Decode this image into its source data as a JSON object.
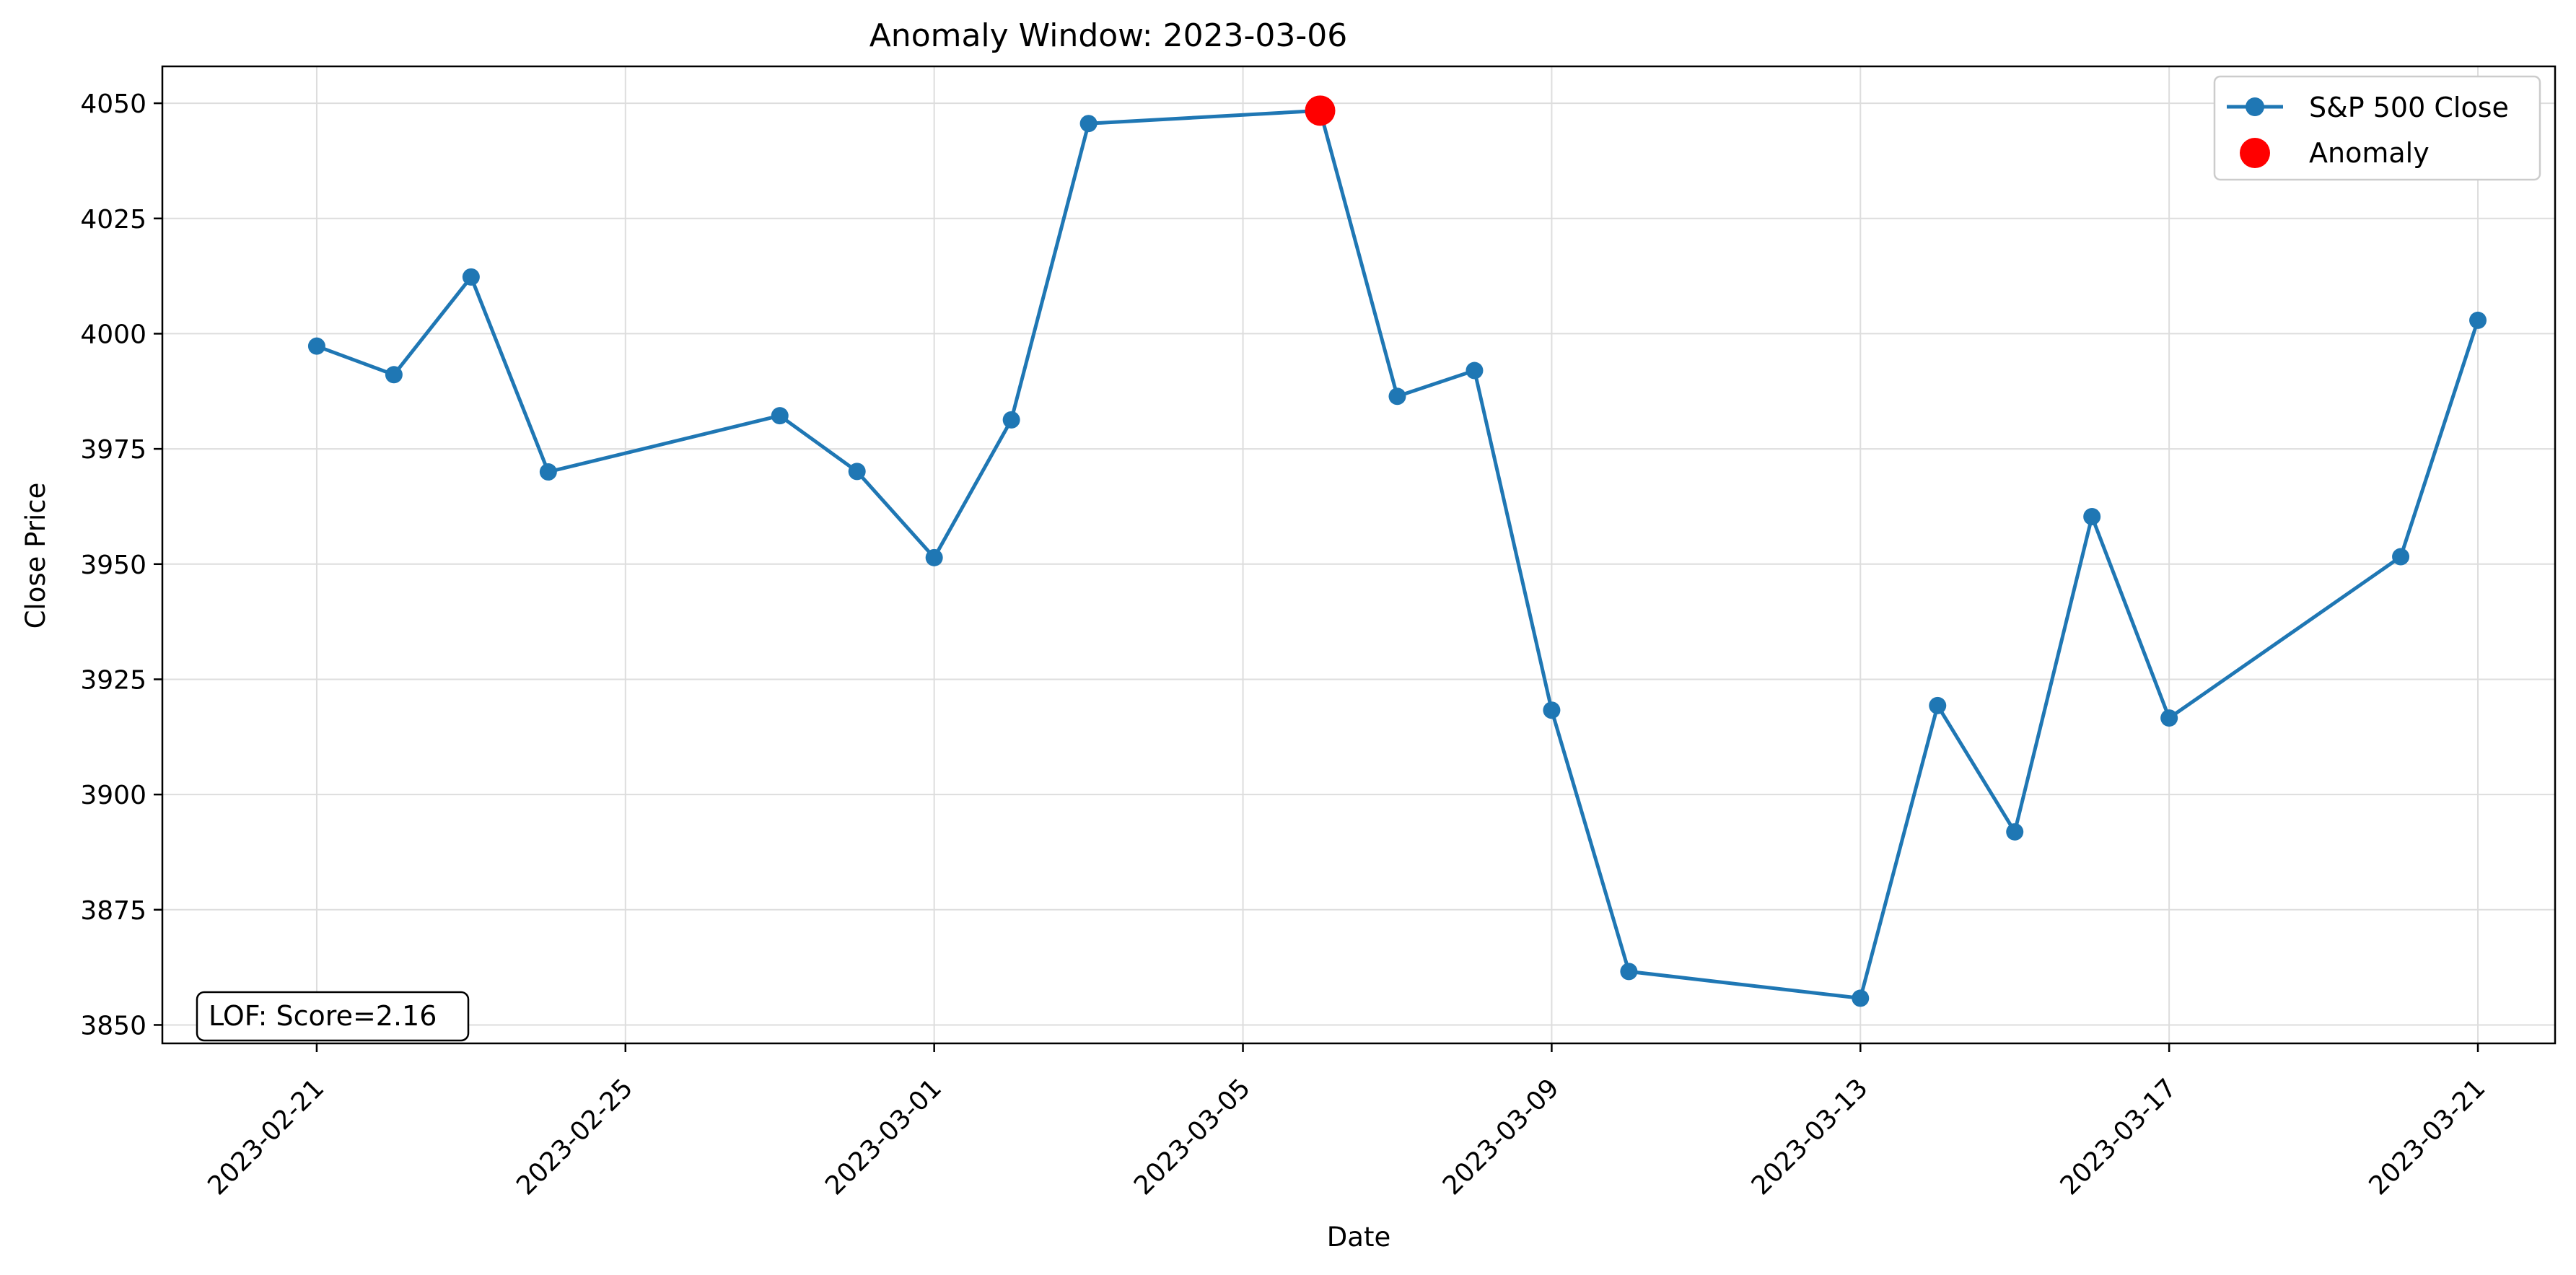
{
  "chart_data": {
    "type": "line",
    "title": "Anomaly Window: 2023-03-06",
    "xlabel": "Date",
    "ylabel": "Close Price",
    "grid": true,
    "legend_position": "top-right",
    "xlim": [
      "2023-02-19",
      "2023-03-22"
    ],
    "ylim": [
      3846,
      4058
    ],
    "x_ticks": [
      "2023-02-21",
      "2023-02-25",
      "2023-03-01",
      "2023-03-05",
      "2023-03-09",
      "2023-03-13",
      "2023-03-17",
      "2023-03-21"
    ],
    "y_ticks": [
      3850,
      3875,
      3900,
      3925,
      3950,
      3975,
      4000,
      4025,
      4050
    ],
    "series": [
      {
        "name": "S&P 500 Close",
        "color": "#1f77b4",
        "marker": "circle",
        "points": [
          {
            "x": "2023-02-21",
            "y": 3997.3
          },
          {
            "x": "2023-02-22",
            "y": 3991.1
          },
          {
            "x": "2023-02-23",
            "y": 4012.3
          },
          {
            "x": "2023-02-24",
            "y": 3970.0
          },
          {
            "x": "2023-02-27",
            "y": 3982.2
          },
          {
            "x": "2023-02-28",
            "y": 3970.1
          },
          {
            "x": "2023-03-01",
            "y": 3951.4
          },
          {
            "x": "2023-03-02",
            "y": 3981.3
          },
          {
            "x": "2023-03-03",
            "y": 4045.6
          },
          {
            "x": "2023-03-06",
            "y": 4048.4
          },
          {
            "x": "2023-03-07",
            "y": 3986.4
          },
          {
            "x": "2023-03-08",
            "y": 3992.0
          },
          {
            "x": "2023-03-09",
            "y": 3918.3
          },
          {
            "x": "2023-03-10",
            "y": 3861.6
          },
          {
            "x": "2023-03-13",
            "y": 3855.8
          },
          {
            "x": "2023-03-14",
            "y": 3919.3
          },
          {
            "x": "2023-03-15",
            "y": 3891.9
          },
          {
            "x": "2023-03-16",
            "y": 3960.3
          },
          {
            "x": "2023-03-17",
            "y": 3916.6
          },
          {
            "x": "2023-03-20",
            "y": 3951.6
          },
          {
            "x": "2023-03-21",
            "y": 4002.9
          }
        ]
      },
      {
        "name": "Anomaly",
        "color": "#ff0000",
        "marker": "circle",
        "points": [
          {
            "x": "2023-03-06",
            "y": 4048.4
          }
        ]
      }
    ],
    "annotation": "LOF: Score=2.16"
  }
}
